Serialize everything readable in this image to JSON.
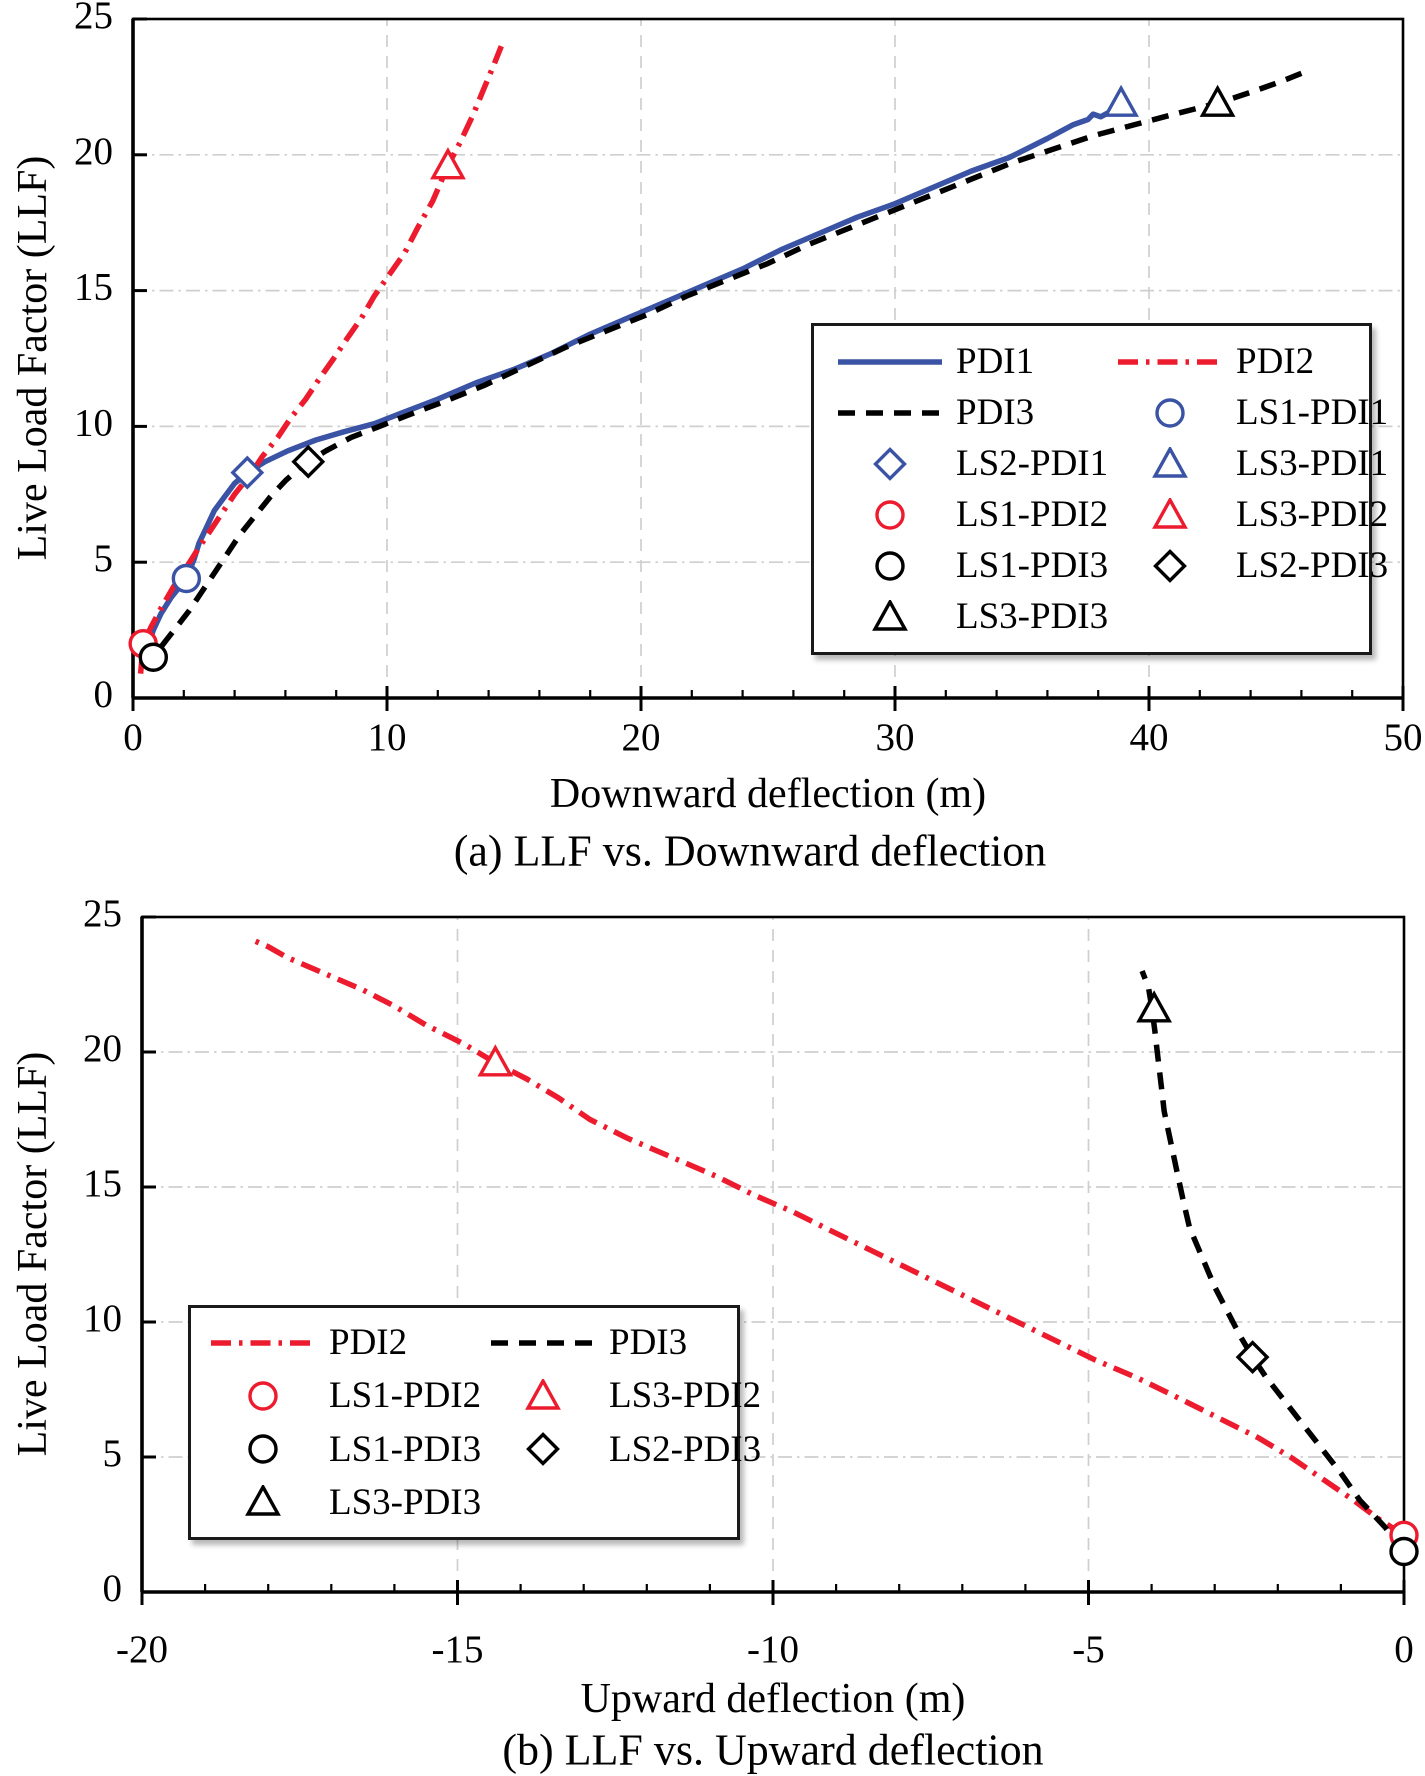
{
  "figure": {
    "background": "#ffffff",
    "colors": {
      "pdi1_blue": "#3a53a4",
      "pdi2_red": "#ec1b2e",
      "pdi3_black": "#000000",
      "grid": "#cfcfcf",
      "axis": "#000000"
    }
  },
  "chart_data": [
    {
      "id": "a",
      "type": "line",
      "title": "(a) LLF vs. Downward deflection",
      "xlabel": "Downward deflection (m)",
      "ylabel": "Live Load Factor (LLF)",
      "xlim": [
        0,
        50
      ],
      "ylim": [
        0,
        25
      ],
      "xticks": [
        0,
        10,
        20,
        30,
        40,
        50
      ],
      "yticks": [
        0,
        5,
        10,
        15,
        20,
        25
      ],
      "x_minor_step": 2,
      "grid_x": [
        10,
        20,
        30,
        40
      ],
      "grid_y": [
        5,
        10,
        15,
        20
      ],
      "legend_position": "right-middle",
      "series": [
        {
          "name": "PDI1",
          "color": "#3a53a4",
          "style": "solid",
          "points": [
            [
              0.5,
              1.2
            ],
            [
              0.6,
              1.9
            ],
            [
              0.8,
              2.5
            ],
            [
              1.1,
              3.1
            ],
            [
              1.5,
              3.7
            ],
            [
              2.1,
              4.4
            ],
            [
              2.4,
              5.1
            ],
            [
              2.6,
              5.7
            ],
            [
              2.9,
              6.3
            ],
            [
              3.2,
              6.9
            ],
            [
              3.6,
              7.4
            ],
            [
              4.0,
              7.9
            ],
            [
              4.5,
              8.3
            ],
            [
              5.2,
              8.7
            ],
            [
              6.1,
              9.1
            ],
            [
              7.2,
              9.5
            ],
            [
              8.3,
              9.8
            ],
            [
              9.5,
              10.1
            ],
            [
              10.6,
              10.5
            ],
            [
              12,
              11.0
            ],
            [
              13.5,
              11.6
            ],
            [
              15,
              12.1
            ],
            [
              16.5,
              12.7
            ],
            [
              18,
              13.4
            ],
            [
              19.5,
              14.0
            ],
            [
              21,
              14.6
            ],
            [
              22.5,
              15.2
            ],
            [
              24,
              15.8
            ],
            [
              25.5,
              16.5
            ],
            [
              27,
              17.1
            ],
            [
              28.5,
              17.7
            ],
            [
              30,
              18.2
            ],
            [
              31.5,
              18.8
            ],
            [
              33,
              19.4
            ],
            [
              34.5,
              19.9
            ],
            [
              36,
              20.6
            ],
            [
              37,
              21.1
            ],
            [
              37.6,
              21.3
            ],
            [
              37.8,
              21.5
            ],
            [
              38.1,
              21.4
            ],
            [
              38.5,
              21.6
            ],
            [
              38.9,
              21.9
            ]
          ]
        },
        {
          "name": "PDI2",
          "color": "#ec1b2e",
          "style": "dashdot",
          "points": [
            [
              0.3,
              0.9
            ],
            [
              0.4,
              2.0
            ],
            [
              0.7,
              2.6
            ],
            [
              1.1,
              3.3
            ],
            [
              1.6,
              4.1
            ],
            [
              2.1,
              4.8
            ],
            [
              2.5,
              5.4
            ],
            [
              3.0,
              6.1
            ],
            [
              3.5,
              6.8
            ],
            [
              4.0,
              7.5
            ],
            [
              4.6,
              8.2
            ],
            [
              5.1,
              8.9
            ],
            [
              5.7,
              9.6
            ],
            [
              6.2,
              10.3
            ],
            [
              6.8,
              11.0
            ],
            [
              7.3,
              11.7
            ],
            [
              7.9,
              12.5
            ],
            [
              8.4,
              13.2
            ],
            [
              9.0,
              14.0
            ],
            [
              9.5,
              14.8
            ],
            [
              10.1,
              15.6
            ],
            [
              10.7,
              16.4
            ],
            [
              11.2,
              17.3
            ],
            [
              11.8,
              18.3
            ],
            [
              12.4,
              19.6
            ],
            [
              12.9,
              20.5
            ],
            [
              13.4,
              21.5
            ],
            [
              13.8,
              22.4
            ],
            [
              14.2,
              23.3
            ],
            [
              14.5,
              24.0
            ]
          ]
        },
        {
          "name": "PDI3",
          "color": "#000000",
          "style": "dashed",
          "points": [
            [
              0.7,
              1.0
            ],
            [
              0.8,
              1.5
            ],
            [
              1.2,
              2.0
            ],
            [
              1.7,
              2.6
            ],
            [
              2.2,
              3.2
            ],
            [
              2.7,
              3.9
            ],
            [
              3.2,
              4.6
            ],
            [
              3.7,
              5.3
            ],
            [
              4.2,
              6.0
            ],
            [
              4.8,
              6.7
            ],
            [
              5.4,
              7.4
            ],
            [
              6.0,
              8.0
            ],
            [
              6.6,
              8.5
            ],
            [
              6.9,
              8.7
            ],
            [
              7.6,
              9.1
            ],
            [
              8.6,
              9.6
            ],
            [
              9.7,
              10.0
            ],
            [
              10.8,
              10.4
            ],
            [
              12.2,
              10.9
            ],
            [
              13.8,
              11.5
            ],
            [
              15.4,
              12.2
            ],
            [
              17,
              12.9
            ],
            [
              18.6,
              13.5
            ],
            [
              20.2,
              14.1
            ],
            [
              21.8,
              14.8
            ],
            [
              23.4,
              15.4
            ],
            [
              25,
              16.0
            ],
            [
              26.6,
              16.7
            ],
            [
              28.2,
              17.3
            ],
            [
              29.8,
              17.9
            ],
            [
              31.4,
              18.5
            ],
            [
              33,
              19.1
            ],
            [
              34.6,
              19.7
            ],
            [
              36.2,
              20.2
            ],
            [
              37.8,
              20.7
            ],
            [
              39.4,
              21.1
            ],
            [
              41,
              21.5
            ],
            [
              42.7,
              21.9
            ],
            [
              44,
              22.3
            ],
            [
              45.2,
              22.7
            ],
            [
              46,
              23.0
            ]
          ]
        }
      ],
      "markers": [
        {
          "name": "LS1-PDI1",
          "shape": "circle",
          "color": "#3a53a4",
          "x": 2.1,
          "y": 4.4
        },
        {
          "name": "LS2-PDI1",
          "shape": "diamond",
          "color": "#3a53a4",
          "x": 4.5,
          "y": 8.3
        },
        {
          "name": "LS3-PDI1",
          "shape": "triangle",
          "color": "#3a53a4",
          "x": 38.9,
          "y": 21.9
        },
        {
          "name": "LS1-PDI2",
          "shape": "circle",
          "color": "#ec1b2e",
          "x": 0.4,
          "y": 2.0
        },
        {
          "name": "LS3-PDI2",
          "shape": "triangle",
          "color": "#ec1b2e",
          "x": 12.4,
          "y": 19.6
        },
        {
          "name": "LS1-PDI3",
          "shape": "circle",
          "color": "#000000",
          "x": 0.8,
          "y": 1.5
        },
        {
          "name": "LS2-PDI3",
          "shape": "diamond",
          "color": "#000000",
          "x": 6.9,
          "y": 8.7
        },
        {
          "name": "LS3-PDI3",
          "shape": "triangle",
          "color": "#000000",
          "x": 42.7,
          "y": 21.9
        }
      ],
      "legend": {
        "rows": [
          [
            {
              "label": "PDI1",
              "sample": "line",
              "style": "solid",
              "color": "#3a53a4"
            },
            {
              "label": "PDI2",
              "sample": "line",
              "style": "dashdot",
              "color": "#ec1b2e"
            }
          ],
          [
            {
              "label": "PDI3",
              "sample": "line",
              "style": "dashed",
              "color": "#000000"
            },
            {
              "label": "LS1-PDI1",
              "sample": "marker",
              "shape": "circle",
              "color": "#3a53a4"
            }
          ],
          [
            {
              "label": "LS2-PDI1",
              "sample": "marker",
              "shape": "diamond",
              "color": "#3a53a4"
            },
            {
              "label": "LS3-PDI1",
              "sample": "marker",
              "shape": "triangle",
              "color": "#3a53a4"
            }
          ],
          [
            {
              "label": "LS1-PDI2",
              "sample": "marker",
              "shape": "circle",
              "color": "#ec1b2e"
            },
            {
              "label": "LS3-PDI2",
              "sample": "marker",
              "shape": "triangle",
              "color": "#ec1b2e"
            }
          ],
          [
            {
              "label": "LS1-PDI3",
              "sample": "marker",
              "shape": "circle",
              "color": "#000000"
            },
            {
              "label": "LS2-PDI3",
              "sample": "marker",
              "shape": "diamond",
              "color": "#000000"
            }
          ],
          [
            {
              "label": "LS3-PDI3",
              "sample": "marker",
              "shape": "triangle",
              "color": "#000000"
            }
          ]
        ]
      }
    },
    {
      "id": "b",
      "type": "line",
      "title": "(b) LLF vs. Upward deflection",
      "xlabel": "Upward deflection (m)",
      "ylabel": "Live Load Factor (LLF)",
      "xlim": [
        -20,
        0
      ],
      "ylim": [
        0,
        25
      ],
      "xticks": [
        -20,
        -15,
        -10,
        -5,
        0
      ],
      "yticks": [
        0,
        5,
        10,
        15,
        20,
        25
      ],
      "x_minor_step": 1,
      "grid_x": [
        -15,
        -10,
        -5
      ],
      "grid_y": [
        5,
        10,
        15,
        20
      ],
      "legend_position": "left-lower",
      "series": [
        {
          "name": "PDI2",
          "color": "#ec1b2e",
          "style": "dashdot",
          "points": [
            [
              0,
              2.1
            ],
            [
              -0.4,
              2.7
            ],
            [
              -0.8,
              3.4
            ],
            [
              -1.3,
              4.2
            ],
            [
              -1.8,
              5.0
            ],
            [
              -2.3,
              5.7
            ],
            [
              -2.9,
              6.4
            ],
            [
              -3.5,
              7.1
            ],
            [
              -4.2,
              7.9
            ],
            [
              -4.9,
              8.6
            ],
            [
              -5.6,
              9.4
            ],
            [
              -6.3,
              10.2
            ],
            [
              -7.0,
              11.0
            ],
            [
              -7.7,
              11.8
            ],
            [
              -8.4,
              12.6
            ],
            [
              -9.1,
              13.4
            ],
            [
              -9.7,
              14.1
            ],
            [
              -10.3,
              14.7
            ],
            [
              -10.9,
              15.4
            ],
            [
              -11.6,
              16.1
            ],
            [
              -12.3,
              16.8
            ],
            [
              -12.9,
              17.5
            ],
            [
              -13.4,
              18.3
            ],
            [
              -13.9,
              19.0
            ],
            [
              -14.4,
              19.6
            ],
            [
              -14.9,
              20.3
            ],
            [
              -15.5,
              21.0
            ],
            [
              -16.0,
              21.7
            ],
            [
              -16.5,
              22.3
            ],
            [
              -17.1,
              22.9
            ],
            [
              -17.7,
              23.5
            ],
            [
              -18.0,
              23.9
            ],
            [
              -18.2,
              24.1
            ]
          ]
        },
        {
          "name": "PDI3",
          "color": "#000000",
          "style": "dashed",
          "points": [
            [
              0,
              1.5
            ],
            [
              -0.3,
              2.4
            ],
            [
              -0.7,
              3.4
            ],
            [
              -1.0,
              4.4
            ],
            [
              -1.3,
              5.3
            ],
            [
              -1.6,
              6.2
            ],
            [
              -1.9,
              7.1
            ],
            [
              -2.2,
              8.0
            ],
            [
              -2.4,
              8.7
            ],
            [
              -2.6,
              9.5
            ],
            [
              -2.8,
              10.4
            ],
            [
              -3.0,
              11.3
            ],
            [
              -3.2,
              12.4
            ],
            [
              -3.4,
              13.5
            ],
            [
              -3.5,
              14.5
            ],
            [
              -3.6,
              15.6
            ],
            [
              -3.7,
              16.7
            ],
            [
              -3.8,
              17.8
            ],
            [
              -3.85,
              18.8
            ],
            [
              -3.9,
              19.8
            ],
            [
              -3.95,
              20.8
            ],
            [
              -4.0,
              21.7
            ],
            [
              -4.05,
              22.4
            ],
            [
              -4.15,
              23.0
            ]
          ]
        }
      ],
      "markers": [
        {
          "name": "LS1-PDI2",
          "shape": "circle",
          "color": "#ec1b2e",
          "x": 0,
          "y": 2.1
        },
        {
          "name": "LS3-PDI2",
          "shape": "triangle",
          "color": "#ec1b2e",
          "x": -14.4,
          "y": 19.6
        },
        {
          "name": "LS1-PDI3",
          "shape": "circle",
          "color": "#000000",
          "x": 0,
          "y": 1.5
        },
        {
          "name": "LS2-PDI3",
          "shape": "diamond",
          "color": "#000000",
          "x": -2.4,
          "y": 8.7
        },
        {
          "name": "LS3-PDI3",
          "shape": "triangle",
          "color": "#000000",
          "x": -3.96,
          "y": 21.6
        }
      ],
      "legend": {
        "rows": [
          [
            {
              "label": "PDI2",
              "sample": "line",
              "style": "dashdot",
              "color": "#ec1b2e"
            },
            {
              "label": "PDI3",
              "sample": "line",
              "style": "dashed",
              "color": "#000000"
            }
          ],
          [
            {
              "label": "LS1-PDI2",
              "sample": "marker",
              "shape": "circle",
              "color": "#ec1b2e"
            },
            {
              "label": "LS3-PDI2",
              "sample": "marker",
              "shape": "triangle",
              "color": "#ec1b2e"
            }
          ],
          [
            {
              "label": "LS1-PDI3",
              "sample": "marker",
              "shape": "circle",
              "color": "#000000"
            },
            {
              "label": "LS2-PDI3",
              "sample": "marker",
              "shape": "diamond",
              "color": "#000000"
            }
          ],
          [
            {
              "label": "LS3-PDI3",
              "sample": "marker",
              "shape": "triangle",
              "color": "#000000"
            }
          ]
        ]
      }
    }
  ]
}
